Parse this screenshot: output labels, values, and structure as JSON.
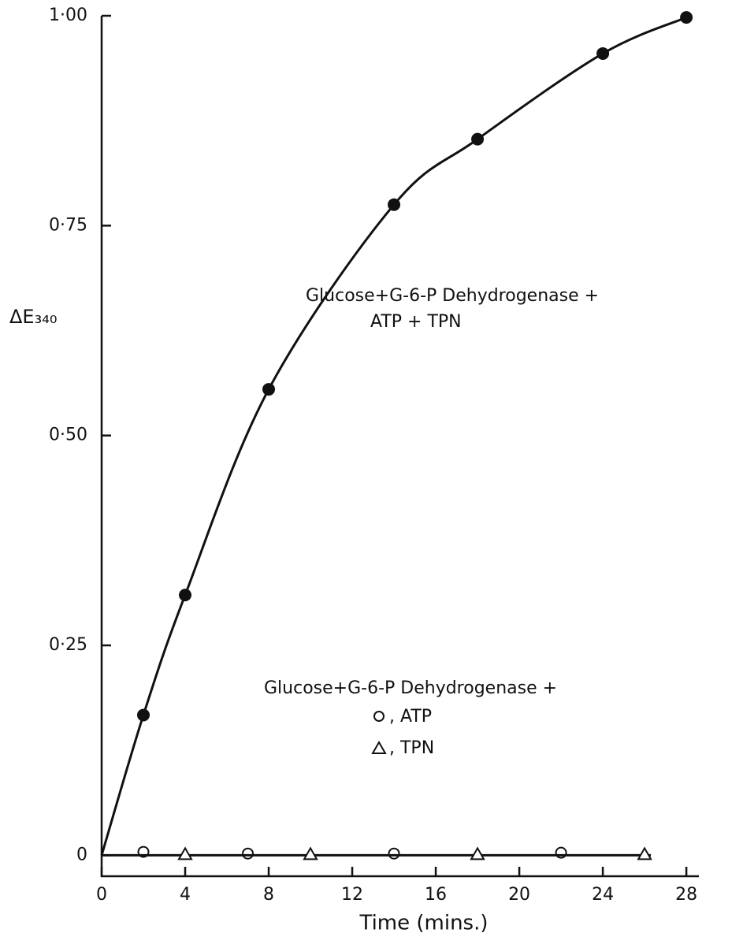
{
  "chart_data": {
    "type": "scatter",
    "x_label": "Time (mins.)",
    "y_label": "ΔE₃₄₀",
    "xlim": [
      0,
      28.6
    ],
    "ylim": [
      -0.025,
      1.0
    ],
    "xticks": [
      0,
      4,
      8,
      12,
      16,
      20,
      24,
      28
    ],
    "yticks": [
      0,
      {
        "value": 0.25,
        "label": "0·25"
      },
      {
        "value": 0.5,
        "label": "0·50"
      },
      {
        "value": 0.75,
        "label": "0·75"
      },
      {
        "value": 1.0,
        "label": "1·00"
      }
    ],
    "series": [
      {
        "marker": "filled-circle",
        "color": "#111",
        "curve": true,
        "x": [
          2,
          4,
          8,
          14,
          18,
          24,
          28
        ],
        "values": [
          0.167,
          0.31,
          0.555,
          0.775,
          0.853,
          0.955,
          0.998
        ]
      },
      {
        "marker": "open-circle",
        "color": "#111",
        "x": [
          2,
          7,
          14,
          22
        ],
        "values": [
          0.004,
          0.002,
          0.002,
          0.003
        ]
      },
      {
        "marker": "open-triangle",
        "color": "#111",
        "x": [
          4,
          10,
          18,
          26
        ],
        "values": [
          0,
          0,
          0,
          0
        ]
      }
    ],
    "annotations": [
      "Glucose+G-6-P Dehydrogenase +",
      "ATP + TPN",
      "Glucose+G-6-P Dehydrogenase +",
      ", ATP",
      ", TPN"
    ]
  }
}
